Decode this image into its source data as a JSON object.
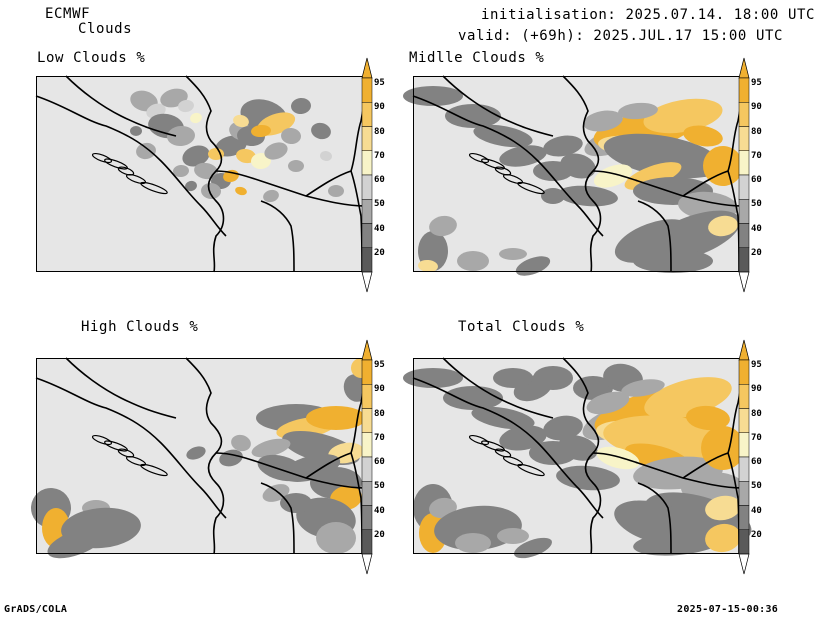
{
  "header": {
    "model": "ECMWF",
    "product": "Clouds",
    "init": "initialisation: 2025.07.14. 18:00 UTC",
    "valid": "valid: (+69h): 2025.JUL.17 15:00 UTC"
  },
  "panels": [
    {
      "title": "Low Clouds %"
    },
    {
      "title": "Midlle Clouds %"
    },
    {
      "title": "High Clouds %"
    },
    {
      "title": "Total Clouds %"
    }
  ],
  "colorbar": {
    "labels": [
      "95",
      "90",
      "80",
      "70",
      "60",
      "50",
      "40",
      "20"
    ],
    "colors": {
      "arrow_top": "#f0b030",
      "c95": "#f0b030",
      "c90": "#f5c760",
      "c80": "#f7dc93",
      "c70": "#f8f4c8",
      "c60": "#d2d2d2",
      "c50": "#a8a8a8",
      "c40": "#828282",
      "c20": "#5a5a5a",
      "arrow_bottom": "#ffffff"
    }
  },
  "map_colors": {
    "background": "#e6e6e6",
    "border": "#000000"
  },
  "footer": {
    "left": "GrADS/COLA",
    "right": "2025-07-15-00:36"
  }
}
